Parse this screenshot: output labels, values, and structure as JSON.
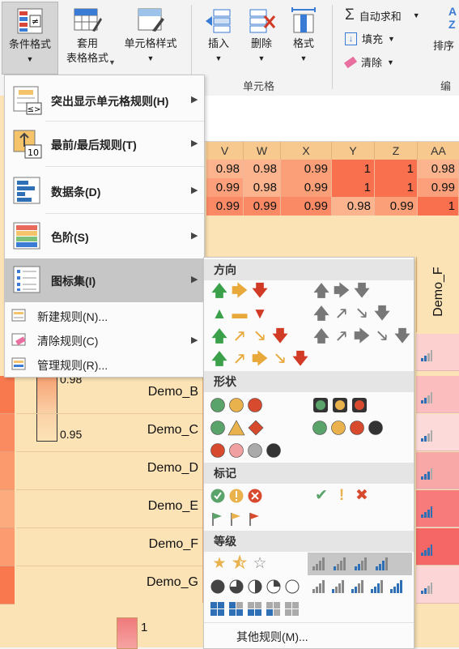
{
  "ribbon": {
    "buttons": {
      "conditional_format": "条件格式",
      "table_format_1": "套用",
      "table_format_2": "表格格式",
      "cell_styles": "单元格样式",
      "insert": "插入",
      "delete": "删除",
      "format": "格式",
      "autosum": "自动求和",
      "fill": "填充",
      "clear": "清除",
      "sort_filter": "排序"
    },
    "groups": {
      "cells": "单元格",
      "editing": "编"
    }
  },
  "menu": {
    "items": [
      {
        "label": "突出显示单元格规则(H)"
      },
      {
        "label": "最前/最后规则(T)"
      },
      {
        "label": "数据条(D)"
      },
      {
        "label": "色阶(S)"
      },
      {
        "label": "图标集(I)"
      }
    ],
    "small_items": [
      {
        "label": "新建规则(N)..."
      },
      {
        "label": "清除规则(C)"
      },
      {
        "label": "管理规则(R)..."
      }
    ]
  },
  "submenu": {
    "sections": {
      "direction": "方向",
      "shapes": "形状",
      "indicators": "标记",
      "ratings": "等级"
    },
    "more_rules": "其他规则(M)..."
  },
  "sheet": {
    "columns": [
      "V",
      "W",
      "X",
      "Y",
      "Z",
      "AA"
    ],
    "rows": [
      [
        "0.98",
        "0.98",
        "0.99",
        "1",
        "1",
        "0.98"
      ],
      [
        "0.99",
        "0.98",
        "0.99",
        "1",
        "1",
        "0.99"
      ],
      [
        "0.99",
        "0.99",
        "0.99",
        "0.98",
        "0.99",
        "1"
      ]
    ],
    "demo_header": "Demo_F",
    "demo_labels": [
      "Demo_B",
      "Demo_C",
      "Demo_D",
      "Demo_E",
      "Demo_F",
      "Demo_G"
    ],
    "legend_values": [
      "0.98",
      "0.95"
    ],
    "bottom_legend": "1"
  },
  "colors": {
    "sheet_bg": "#fbe3b6",
    "accent_green": "#3aa04a",
    "accent_yellow": "#e8a83a",
    "accent_red": "#d13a24",
    "excel_blue": "#2f6fb5"
  }
}
